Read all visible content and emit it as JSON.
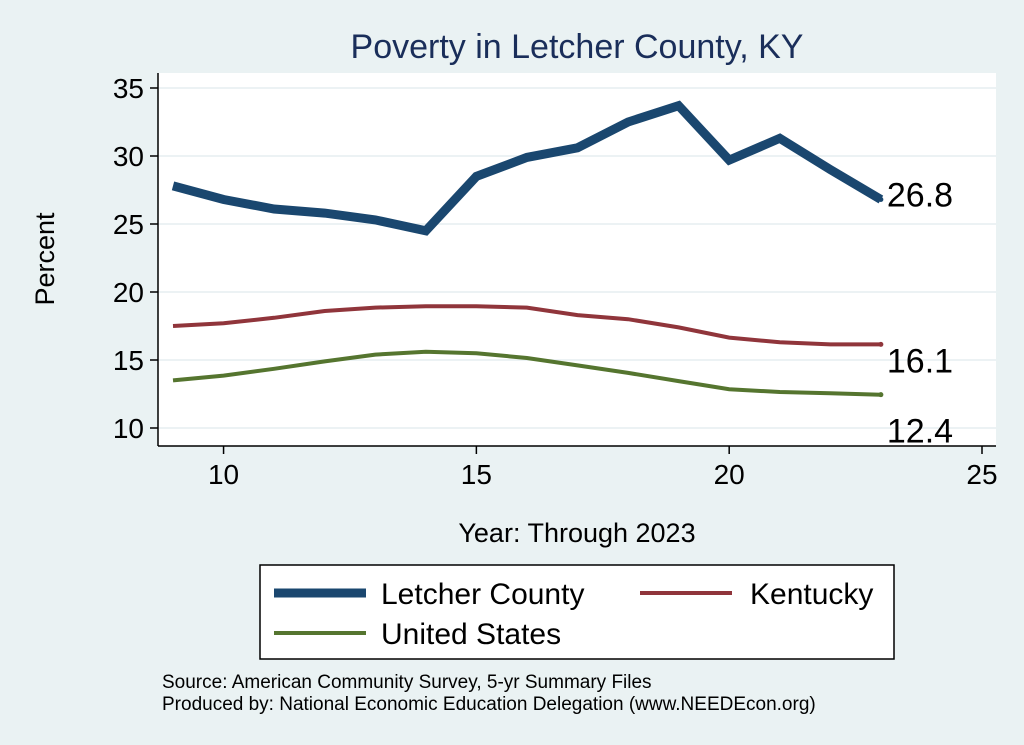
{
  "chart_data": {
    "type": "line",
    "title": "Poverty in Letcher County, KY",
    "xlabel": "Year: Through 2023",
    "ylabel": "Percent",
    "xlim": [
      9,
      25
    ],
    "ylim": [
      10,
      35
    ],
    "xticks": [
      10,
      15,
      20,
      25
    ],
    "yticks": [
      10,
      15,
      20,
      25,
      30,
      35
    ],
    "x": [
      9,
      10,
      11,
      12,
      13,
      14,
      15,
      16,
      17,
      18,
      19,
      20,
      21,
      22,
      23
    ],
    "series": [
      {
        "name": "Letcher County",
        "color": "#1a476f",
        "values": [
          27.8,
          26.8,
          26.1,
          25.8,
          25.3,
          24.5,
          28.5,
          29.9,
          30.6,
          32.5,
          33.7,
          29.7,
          31.3,
          29.0,
          26.8
        ],
        "end_label": "26.8"
      },
      {
        "name": "Kentucky",
        "color": "#90353b",
        "values": [
          17.5,
          17.7,
          18.1,
          18.6,
          18.85,
          18.95,
          18.95,
          18.85,
          18.3,
          18.0,
          17.4,
          16.65,
          16.3,
          16.15,
          16.15
        ],
        "end_label": "16.1"
      },
      {
        "name": "United States",
        "color": "#55752f",
        "values": [
          13.5,
          13.85,
          14.35,
          14.9,
          15.4,
          15.6,
          15.5,
          15.15,
          14.6,
          14.05,
          13.45,
          12.85,
          12.65,
          12.55,
          12.45
        ],
        "end_label": "12.4"
      }
    ],
    "legend_position": "bottom",
    "grid": true
  },
  "footer": {
    "source": "Source: American Community Survey, 5-yr Summary Files",
    "produced_by": "Produced by: National Economic Education Delegation (www.NEEDEcon.org)"
  }
}
